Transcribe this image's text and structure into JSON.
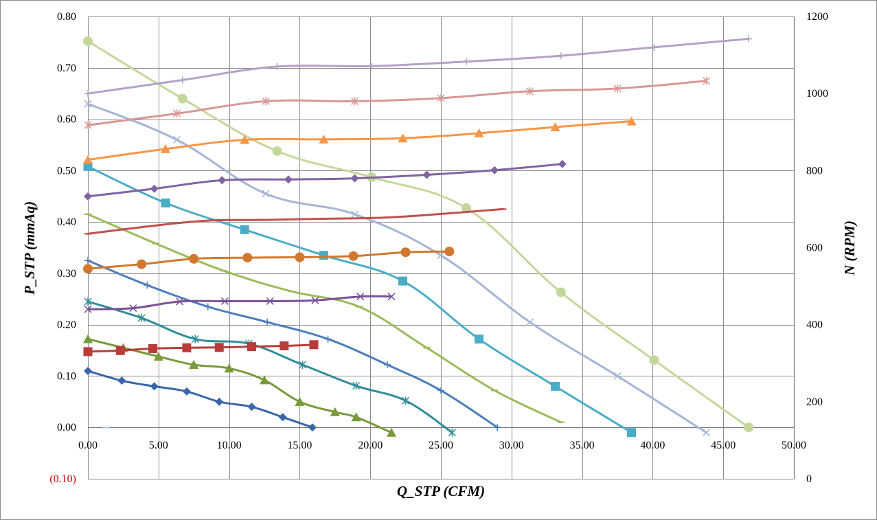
{
  "chart_data": {
    "type": "line",
    "title": "",
    "xlabel": "Q_STP (CFM)",
    "ylabel": "P_STP (mmAq)",
    "y2label": "N (RPM)",
    "xlim": [
      0,
      50
    ],
    "ylim": [
      -0.1,
      0.8
    ],
    "y2lim": [
      0,
      1200
    ],
    "grid": true,
    "legend": "none",
    "x_ticks": [
      "0.00",
      "5.00",
      "10.00",
      "15.00",
      "20.00",
      "25.00",
      "30.00",
      "35.00",
      "40.00",
      "45.00",
      "50.00"
    ],
    "y_ticks": [
      "(0.10)",
      "0.00",
      "0.10",
      "0.20",
      "0.30",
      "0.40",
      "0.50",
      "0.60",
      "0.70",
      "0.80"
    ],
    "y2_ticks": [
      "0",
      "200",
      "400",
      "600",
      "800",
      "1000",
      "1200"
    ],
    "series": [
      {
        "axis": "left",
        "color": "#3a66a8",
        "marker": "diamond",
        "x": [
          0,
          2.4,
          4.7,
          7.0,
          9.3,
          11.6,
          13.8,
          15.9
        ],
        "y": [
          0.11,
          0.091,
          0.08,
          0.07,
          0.05,
          0.04,
          0.02,
          0.0
        ]
      },
      {
        "axis": "left",
        "color": "#789a3a",
        "marker": "triangle",
        "x": [
          0,
          2.5,
          5.0,
          7.5,
          10.0,
          12.5,
          15.0,
          17.5,
          19.0,
          21.5
        ],
        "y": [
          0.172,
          0.155,
          0.138,
          0.122,
          0.115,
          0.092,
          0.05,
          0.03,
          0.02,
          -0.01
        ]
      },
      {
        "axis": "left",
        "color": "#2f8d99",
        "marker": "star",
        "x": [
          0,
          3.8,
          7.6,
          11.4,
          15.2,
          19.0,
          22.5,
          25.8
        ],
        "y": [
          0.245,
          0.213,
          0.172,
          0.163,
          0.122,
          0.081,
          0.052,
          -0.01
        ]
      },
      {
        "axis": "left",
        "color": "#4a7ebb",
        "marker": "plus",
        "x": [
          0,
          4.2,
          8.5,
          12.7,
          17.0,
          21.2,
          25.0,
          29.0
        ],
        "y": [
          0.325,
          0.277,
          0.235,
          0.205,
          0.172,
          0.122,
          0.072,
          0.0
        ]
      },
      {
        "axis": "left",
        "color": "#9bbb59",
        "marker": "dash",
        "x": [
          0,
          4.8,
          9.6,
          14.4,
          19.2,
          24.0,
          28.8,
          33.5
        ],
        "y": [
          0.415,
          0.358,
          0.305,
          0.265,
          0.235,
          0.155,
          0.072,
          0.01
        ]
      },
      {
        "axis": "left",
        "color": "#4bacc6",
        "marker": "square",
        "x": [
          0,
          5.5,
          11.1,
          16.7,
          22.3,
          27.7,
          33.1,
          38.5
        ],
        "y": [
          0.508,
          0.437,
          0.385,
          0.335,
          0.285,
          0.172,
          0.08,
          -0.01
        ]
      },
      {
        "axis": "left",
        "color": "#a5b5d6",
        "marker": "cross",
        "x": [
          0,
          6.3,
          12.6,
          18.9,
          25.0,
          31.3,
          37.5,
          43.8
        ],
        "y": [
          0.63,
          0.56,
          0.455,
          0.415,
          0.335,
          0.205,
          0.1,
          -0.01
        ]
      },
      {
        "axis": "left",
        "color": "#c4d79b",
        "marker": "circle",
        "x": [
          0,
          6.7,
          13.4,
          20.1,
          26.8,
          33.5,
          40.1,
          46.8
        ],
        "y": [
          0.752,
          0.64,
          0.538,
          0.487,
          0.427,
          0.263,
          0.131,
          0.0
        ]
      },
      {
        "axis": "left",
        "color": "#a9c5e6",
        "marker": "dash",
        "x": [
          1.3
        ],
        "y": [
          0.0
        ]
      },
      {
        "axis": "right",
        "color": "#b83c3a",
        "marker": "square",
        "x": [
          0,
          2.3,
          4.6,
          7.0,
          9.3,
          11.6,
          13.9,
          16.0
        ],
        "y": [
          330,
          333,
          338,
          340,
          341,
          343,
          345,
          348
        ]
      },
      {
        "axis": "right",
        "color": "#7a5196",
        "marker": "cross",
        "x": [
          0,
          3.2,
          6.5,
          9.7,
          12.9,
          16.1,
          19.3,
          21.5
        ],
        "y": [
          440,
          443,
          460,
          461,
          461,
          463,
          473,
          473
        ]
      },
      {
        "axis": "right",
        "color": "#d0782e",
        "marker": "circle",
        "x": [
          0,
          3.8,
          7.5,
          11.3,
          15.0,
          18.8,
          22.5,
          25.6
        ],
        "y": [
          545,
          557,
          571,
          574,
          575,
          578,
          588,
          590
        ]
      },
      {
        "axis": "right",
        "color": "#c0504d",
        "marker": "dash",
        "x": [
          0,
          4.2,
          8.4,
          12.6,
          16.8,
          21.0,
          25.2,
          29.4
        ],
        "y": [
          636,
          655,
          670,
          672,
          675,
          678,
          688,
          700
        ]
      },
      {
        "axis": "right",
        "color": "#8064a2",
        "marker": "diamond",
        "x": [
          0,
          4.7,
          9.5,
          14.2,
          18.9,
          24.0,
          28.8,
          33.6
        ],
        "y": [
          733,
          753,
          775,
          777,
          780,
          789,
          801,
          817
        ]
      },
      {
        "axis": "right",
        "color": "#f79646",
        "marker": "triangle",
        "x": [
          0,
          5.5,
          11.1,
          16.7,
          22.3,
          27.7,
          33.1,
          38.5
        ],
        "y": [
          828,
          856,
          880,
          881,
          884,
          897,
          913,
          928
        ]
      },
      {
        "axis": "right",
        "color": "#d99795",
        "marker": "star",
        "x": [
          0,
          6.3,
          12.6,
          18.9,
          25.0,
          31.3,
          37.5,
          43.8
        ],
        "y": [
          918,
          948,
          980,
          980,
          988,
          1006,
          1013,
          1033
        ]
      },
      {
        "axis": "right",
        "color": "#b3a2c7",
        "marker": "plus",
        "x": [
          0,
          6.7,
          13.4,
          20.1,
          26.8,
          33.5,
          40.1,
          46.8
        ],
        "y": [
          1000,
          1035,
          1070,
          1071,
          1083,
          1098,
          1120,
          1142
        ]
      }
    ]
  }
}
